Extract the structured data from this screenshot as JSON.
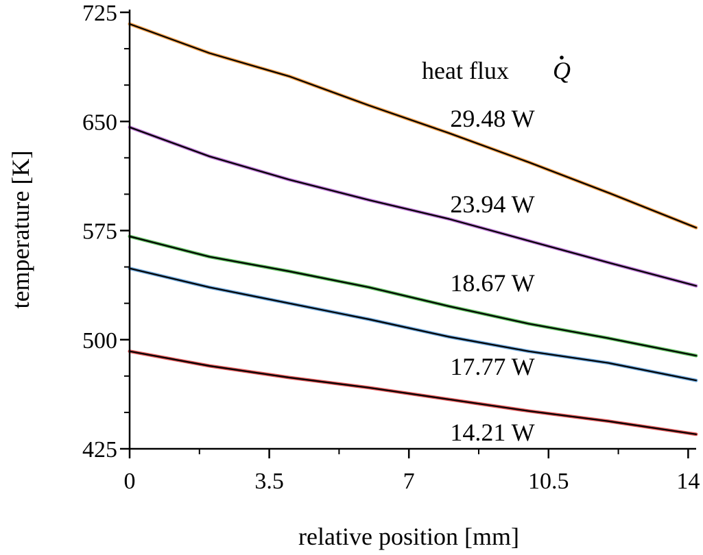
{
  "chart_data": {
    "type": "line",
    "xlabel": "relative position [mm]",
    "ylabel": "temperature [K]",
    "xlim": [
      0,
      14.2
    ],
    "ylim": [
      425,
      725
    ],
    "x_ticks": [
      0,
      3.5,
      7,
      10.5,
      14
    ],
    "x_tick_labels": [
      "0",
      "3.5",
      "7",
      "10.5",
      "14"
    ],
    "y_ticks": [
      425,
      500,
      575,
      650,
      725
    ],
    "y_tick_labels": [
      "425",
      "500",
      "575",
      "650",
      "725"
    ],
    "legend_title": "heat flux",
    "legend_title_symbol": "Q",
    "grid": false,
    "series": [
      {
        "name": "29.48 W",
        "color": "#f5a04a",
        "x": [
          0,
          2,
          4,
          6,
          8,
          10,
          12,
          14.2
        ],
        "y": [
          717,
          697,
          681,
          661,
          642,
          622,
          601,
          577
        ]
      },
      {
        "name": "23.94 W",
        "color": "#c07ad8",
        "x": [
          0,
          2,
          4,
          6,
          8,
          10,
          12,
          14.2
        ],
        "y": [
          646,
          626,
          610,
          596,
          583,
          568,
          553,
          537
        ]
      },
      {
        "name": "18.67 W",
        "color": "#5fbf5f",
        "x": [
          0,
          2,
          4,
          6,
          8,
          10,
          12,
          14.2
        ],
        "y": [
          571,
          557,
          547,
          536,
          523,
          511,
          501,
          489
        ]
      },
      {
        "name": "17.77 W",
        "color": "#6fa8dc",
        "x": [
          0,
          2,
          4,
          6,
          8,
          10,
          12,
          14.2
        ],
        "y": [
          549,
          536,
          525,
          514,
          502,
          492,
          484,
          472
        ]
      },
      {
        "name": "14.21 W",
        "color": "#e05555",
        "x": [
          0,
          2,
          4,
          6,
          8,
          10,
          12,
          14.2
        ],
        "y": [
          492,
          482,
          474,
          467,
          459,
          451,
          444,
          435
        ]
      }
    ]
  }
}
